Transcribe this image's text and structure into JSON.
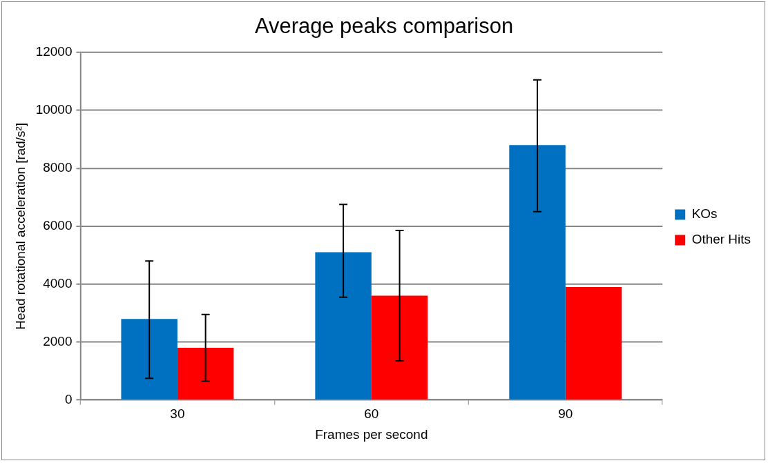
{
  "chart_data": {
    "type": "bar",
    "title": "Average peaks comparison",
    "xlabel": "Frames per second",
    "ylabel": "Head rotational acceleration [rad/s²]",
    "categories": [
      "30",
      "60",
      "90"
    ],
    "series": [
      {
        "name": "KOs",
        "color": "#0070c0",
        "values": [
          2800,
          5100,
          8800
        ],
        "errors": [
          [
            750,
            4800
          ],
          [
            3550,
            6750
          ],
          [
            6500,
            11050
          ]
        ]
      },
      {
        "name": "Other Hits",
        "color": "#ff0000",
        "values": [
          1800,
          3600,
          3900
        ],
        "errors": [
          [
            650,
            2950
          ],
          [
            1350,
            5850
          ],
          null
        ]
      }
    ],
    "ylim": [
      0,
      12000
    ],
    "yticks": [
      0,
      2000,
      4000,
      6000,
      8000,
      10000,
      12000
    ],
    "grid": "y",
    "legend": "right"
  }
}
